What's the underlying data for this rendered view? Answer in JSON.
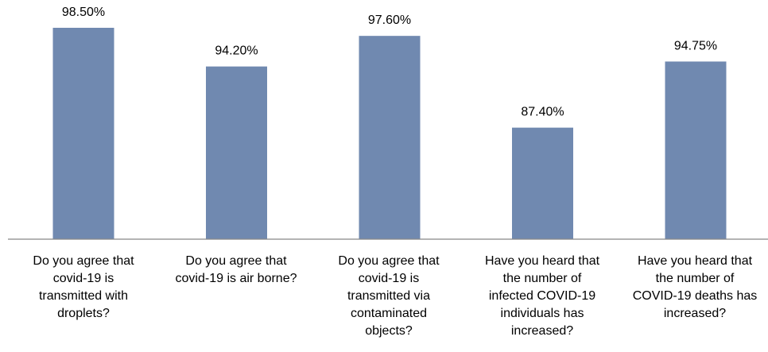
{
  "chart_data": {
    "type": "bar",
    "title": "",
    "xlabel": "",
    "ylabel": "",
    "categories": [
      "Do you agree that\ncovid-19 is\ntransmitted with\ndroplets?",
      "Do you agree that\ncovid-19 is air borne?",
      "Do you agree that\ncovid-19 is\ntransmitted via\ncontaminated\nobjects?",
      "Have you heard that\nthe number of\ninfected COVID-19\nindividuals has\nincreased?",
      "Have you heard that\nthe number of\nCOVID-19 deaths has\nincreased?"
    ],
    "values": [
      98.5,
      94.2,
      97.6,
      87.4,
      94.75
    ],
    "data_labels": [
      "98.50%",
      "94.20%",
      "97.60%",
      "87.40%",
      "94.75%"
    ],
    "ylim": [
      75,
      100
    ],
    "grid": false,
    "bar_color": "#7089b0",
    "axis_color": "#888888"
  }
}
